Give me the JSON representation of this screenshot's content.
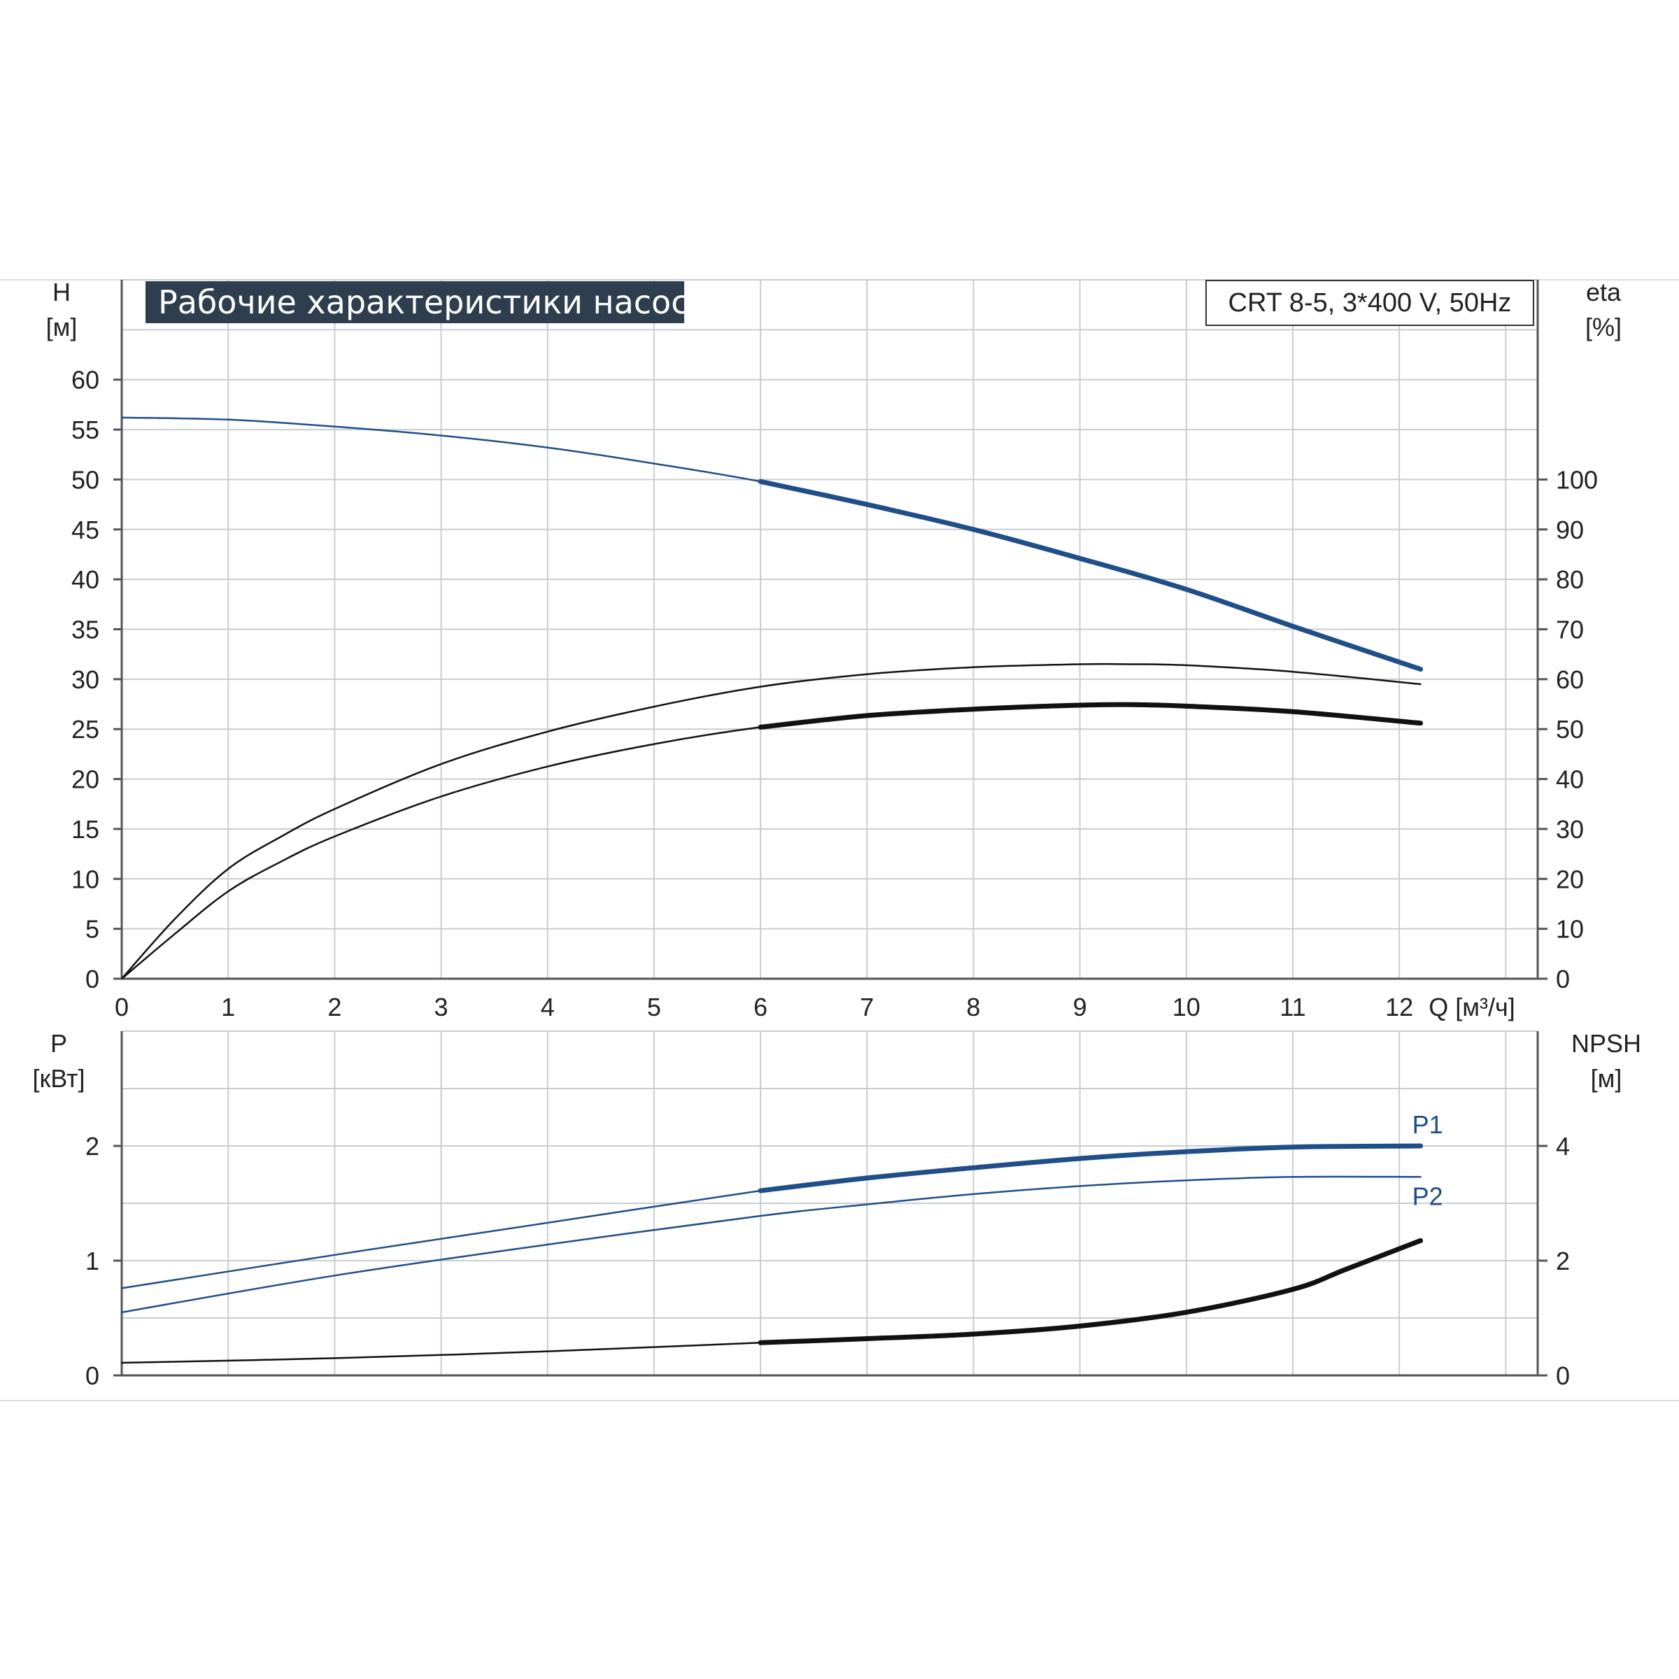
{
  "colors": {
    "blue": "#1f4e89",
    "black": "#111111",
    "grid": "#c9cdd2",
    "axis": "#555555"
  },
  "chart_data": [
    {
      "type": "line",
      "title": "Рабочие характеристики насоса",
      "subtitle": "CRT 8-5, 3*400 V, 50Hz",
      "xlabel": "Q [м³/ч]",
      "ylabel_left": [
        "H",
        "[м]"
      ],
      "ylabel_right": [
        "eta",
        "[%]"
      ],
      "xlim": [
        0,
        13.3
      ],
      "x_ticks": [
        "0",
        "1",
        "2",
        "3",
        "4",
        "5",
        "6",
        "7",
        "8",
        "9",
        "10",
        "11",
        "12"
      ],
      "ylim_left": [
        0,
        70
      ],
      "y_ticks_left": [
        "0",
        "5",
        "10",
        "15",
        "20",
        "25",
        "30",
        "35",
        "40",
        "45",
        "50",
        "55",
        "60"
      ],
      "ylim_right": [
        0,
        140
      ],
      "y_ticks_right": [
        "0",
        "10",
        "20",
        "30",
        "40",
        "50",
        "60",
        "70",
        "80",
        "90",
        "100"
      ],
      "grid": true,
      "series": [
        {
          "axis": "left",
          "color": "blue",
          "x": [
            0,
            1,
            2,
            3,
            4,
            5,
            6,
            7,
            8,
            9,
            10,
            11,
            12.2
          ],
          "y": [
            56.2,
            56.0,
            55.3,
            54.4,
            53.2,
            51.6,
            49.8,
            47.5,
            45.0,
            42.1,
            39.0,
            35.3,
            31.0
          ],
          "bold_from": 6
        },
        {
          "axis": "right",
          "color": "black",
          "x": [
            0,
            0.5,
            1,
            1.5,
            2,
            3,
            4,
            5,
            6,
            7,
            8,
            9,
            9.5,
            10,
            11,
            12.2
          ],
          "y": [
            0,
            12,
            22,
            28.5,
            34,
            43,
            49.5,
            54.5,
            58.5,
            61,
            62.4,
            63,
            63,
            62.8,
            61.5,
            59
          ],
          "bold_from": null
        },
        {
          "axis": "right",
          "color": "black",
          "x": [
            0,
            0.5,
            1,
            1.5,
            2,
            3,
            4,
            5,
            6,
            7,
            8,
            9,
            9.5,
            10,
            11,
            12.2
          ],
          "y": [
            0,
            9,
            17.5,
            23.5,
            28.5,
            36.5,
            42.5,
            47,
            50.4,
            52.7,
            54,
            54.8,
            54.9,
            54.6,
            53.5,
            51.2
          ],
          "bold_from": 6
        }
      ]
    },
    {
      "type": "line",
      "xlim": [
        0,
        13.3
      ],
      "ylabel_left": [
        "P",
        "[кВт]"
      ],
      "ylabel_right": [
        "NPSH",
        "[м]"
      ],
      "ylim_left": [
        0,
        3
      ],
      "y_ticks_left": [
        "0",
        "1",
        "2"
      ],
      "ylim_right": [
        0,
        6
      ],
      "y_ticks_right": [
        "0",
        "2",
        "4"
      ],
      "grid": true,
      "series": [
        {
          "name": "P1",
          "axis": "left",
          "color": "blue",
          "x": [
            0,
            2,
            4,
            6,
            7,
            8,
            9,
            10,
            11,
            12.2
          ],
          "y": [
            0.76,
            1.05,
            1.33,
            1.61,
            1.72,
            1.81,
            1.89,
            1.95,
            1.99,
            2.0
          ],
          "bold_from": 6
        },
        {
          "name": "P2",
          "axis": "left",
          "color": "blue",
          "x": [
            0,
            2,
            4,
            6,
            7,
            8,
            9,
            10,
            11,
            12.2
          ],
          "y": [
            0.55,
            0.87,
            1.14,
            1.39,
            1.49,
            1.58,
            1.65,
            1.7,
            1.73,
            1.73
          ],
          "bold_from": null
        },
        {
          "axis": "right",
          "color": "black",
          "x": [
            0,
            2,
            4,
            6,
            7,
            8,
            9,
            10,
            11,
            11.5,
            12.2
          ],
          "y": [
            0.22,
            0.3,
            0.42,
            0.57,
            0.64,
            0.72,
            0.86,
            1.1,
            1.5,
            1.85,
            2.35
          ],
          "bold_from": 6
        }
      ]
    }
  ]
}
